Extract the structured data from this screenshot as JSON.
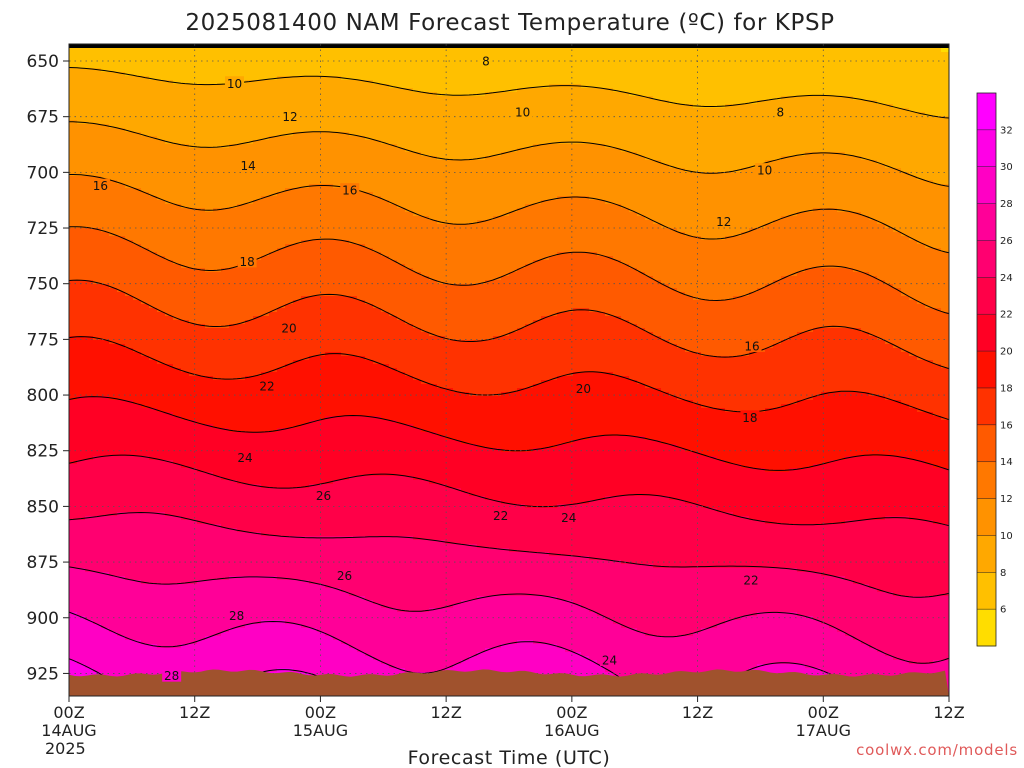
{
  "chart_data": {
    "type": "heatmap",
    "title": "2025081400 NAM Forecast Temperature (ºC) for KPSP",
    "xlabel": "Forecast Time (UTC)",
    "credit": "coolwx.com/models",
    "x_hours": [
      0,
      12,
      24,
      36,
      48,
      60,
      72,
      84
    ],
    "x_tick_labels": [
      [
        "00Z",
        "14AUG",
        "2025"
      ],
      [
        "12Z"
      ],
      [
        "00Z",
        "15AUG"
      ],
      [
        "12Z"
      ],
      [
        "00Z",
        "16AUG"
      ],
      [
        "12Z"
      ],
      [
        "00Z",
        "17AUG"
      ],
      [
        "12Z"
      ]
    ],
    "y_levels_hpa": [
      650,
      675,
      700,
      725,
      750,
      775,
      800,
      825,
      850,
      875,
      900,
      925
    ],
    "y_range": [
      643,
      947
    ],
    "x_range": [
      0,
      84
    ],
    "grid": true,
    "contour_interval": 2,
    "contour_labels": [
      {
        "value": 8,
        "x": 39.8,
        "p": 650
      },
      {
        "value": 8,
        "x": 67.9,
        "p": 673
      },
      {
        "value": 10,
        "x": 15.8,
        "p": 660
      },
      {
        "value": 10,
        "x": 43.3,
        "p": 673
      },
      {
        "value": 10,
        "x": 66.4,
        "p": 699
      },
      {
        "value": 12,
        "x": 21.1,
        "p": 675
      },
      {
        "value": 12,
        "x": 62.5,
        "p": 722
      },
      {
        "value": 14,
        "x": 17.1,
        "p": 697
      },
      {
        "value": 16,
        "x": 3.0,
        "p": 706
      },
      {
        "value": 16,
        "x": 26.8,
        "p": 708
      },
      {
        "value": 16,
        "x": 65.2,
        "p": 778
      },
      {
        "value": 18,
        "x": 17.0,
        "p": 740
      },
      {
        "value": 18,
        "x": 65.0,
        "p": 810
      },
      {
        "value": 20,
        "x": 21.0,
        "p": 770
      },
      {
        "value": 20,
        "x": 49.1,
        "p": 797
      },
      {
        "value": 22,
        "x": 18.9,
        "p": 796
      },
      {
        "value": 22,
        "x": 41.2,
        "p": 854
      },
      {
        "value": 22,
        "x": 65.1,
        "p": 883
      },
      {
        "value": 24,
        "x": 16.8,
        "p": 828
      },
      {
        "value": 24,
        "x": 47.7,
        "p": 855
      },
      {
        "value": 24,
        "x": 51.6,
        "p": 919
      },
      {
        "value": 26,
        "x": 24.3,
        "p": 845
      },
      {
        "value": 26,
        "x": 26.3,
        "p": 881
      },
      {
        "value": 28,
        "x": 16.0,
        "p": 899
      },
      {
        "value": 28,
        "x": 9.8,
        "p": 926
      }
    ],
    "colorbar": {
      "levels": [
        6,
        8,
        10,
        12,
        14,
        16,
        18,
        20,
        22,
        24,
        26,
        28,
        30,
        32
      ],
      "colors": [
        "#ffdd00",
        "#ffc000",
        "#ffa800",
        "#ff9200",
        "#ff7800",
        "#ff5a00",
        "#ff3200",
        "#ff1000",
        "#ff0024",
        "#ff0048",
        "#ff0070",
        "#ff0098",
        "#ff00c4",
        "#ff00e6",
        "#ff00ff"
      ]
    },
    "ground_color": "#a0522d"
  }
}
